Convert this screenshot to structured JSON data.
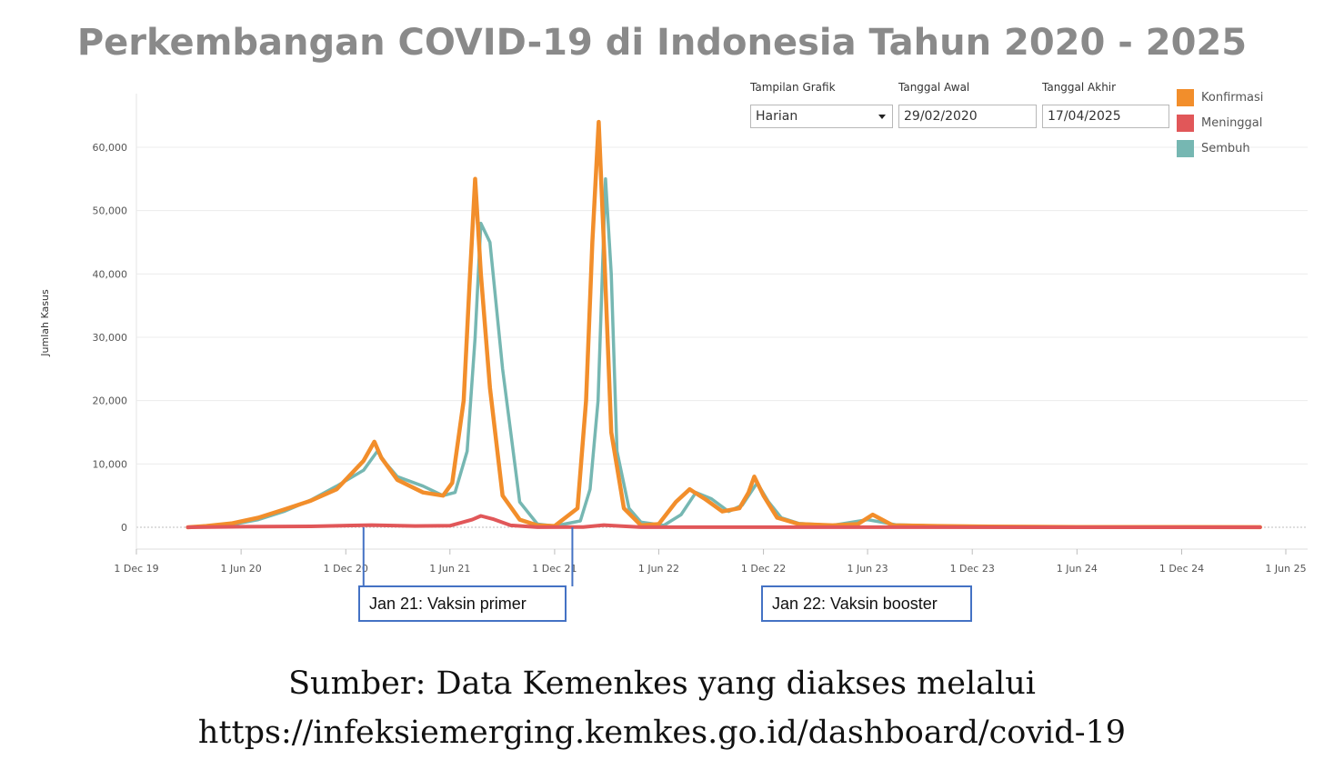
{
  "controls": {
    "view_label": "Tampilan Grafik",
    "view_value": "Harian",
    "start_label": "Tanggal Awal",
    "start_value": "29/02/2020",
    "end_label": "Tanggal Akhir",
    "end_value": "17/04/2025"
  },
  "annotations": [
    {
      "label": "Jan 21: Vaksin primer",
      "date": "2021-01-01"
    },
    {
      "label": "Jan 22: Vaksin booster",
      "date": "2022-01-01"
    }
  ],
  "source": {
    "line1": "Sumber: Data Kemenkes yang diakses melalui",
    "line2": "https://infeksiemerging.kemkes.go.id/dashboard/covid-19"
  },
  "chart_data": {
    "type": "line",
    "title": "Perkembangan COVID-19 di Indonesia Tahun 2020 - 2025",
    "ylabel": "Jumlah Kasus",
    "xlabel": "",
    "ylim": [
      0,
      65000
    ],
    "xlim": [
      "2019-12-01",
      "2025-06-01"
    ],
    "yticks": [
      0,
      10000,
      20000,
      30000,
      40000,
      50000,
      60000
    ],
    "ytick_labels": [
      "0",
      "10,000",
      "20,000",
      "30,000",
      "40,000",
      "50,000",
      "60,000"
    ],
    "xticks": [
      "2019-12-01",
      "2020-06-01",
      "2020-12-01",
      "2021-06-01",
      "2021-12-01",
      "2022-06-01",
      "2022-12-01",
      "2023-06-01",
      "2023-12-01",
      "2024-06-01",
      "2024-12-01",
      "2025-06-01"
    ],
    "xtick_labels": [
      "1 Dec 19",
      "1 Jun 20",
      "1 Dec 20",
      "1 Jun 21",
      "1 Dec 21",
      "1 Jun 22",
      "1 Dec 22",
      "1 Jun 23",
      "1 Dec 23",
      "1 Jun 24",
      "1 Dec 24",
      "1 Jun 25"
    ],
    "legend_position": "top-right",
    "grid": "horizontal",
    "series": [
      {
        "name": "Konfirmasi",
        "color": "#f28e2b",
        "x": [
          "2020-02-29",
          "2020-04-01",
          "2020-05-15",
          "2020-07-01",
          "2020-08-15",
          "2020-10-01",
          "2020-11-15",
          "2021-01-01",
          "2021-01-20",
          "2021-02-01",
          "2021-03-01",
          "2021-04-15",
          "2021-05-20",
          "2021-06-05",
          "2021-06-25",
          "2021-07-05",
          "2021-07-15",
          "2021-07-25",
          "2021-08-10",
          "2021-09-01",
          "2021-10-01",
          "2021-11-01",
          "2021-12-01",
          "2022-01-10",
          "2022-01-25",
          "2022-02-05",
          "2022-02-16",
          "2022-02-25",
          "2022-03-10",
          "2022-04-01",
          "2022-05-01",
          "2022-06-01",
          "2022-07-01",
          "2022-07-25",
          "2022-08-20",
          "2022-09-20",
          "2022-10-20",
          "2022-11-05",
          "2022-11-15",
          "2022-12-01",
          "2022-12-25",
          "2023-02-01",
          "2023-04-01",
          "2023-05-15",
          "2023-06-10",
          "2023-07-15",
          "2023-10-01",
          "2024-01-01",
          "2024-06-01",
          "2024-12-01",
          "2025-04-17"
        ],
        "values": [
          0,
          200,
          600,
          1500,
          2800,
          4200,
          6000,
          10500,
          13500,
          11000,
          7500,
          5500,
          5000,
          7000,
          20000,
          38000,
          55000,
          40000,
          22000,
          5000,
          1200,
          300,
          200,
          3000,
          20000,
          45000,
          64000,
          45000,
          15000,
          3000,
          300,
          500,
          4000,
          6000,
          4500,
          2500,
          3000,
          5500,
          8000,
          5000,
          1500,
          500,
          300,
          500,
          2000,
          300,
          200,
          100,
          50,
          30,
          20
        ]
      },
      {
        "name": "Meninggal",
        "color": "#e15759",
        "x": [
          "2020-02-29",
          "2020-06-01",
          "2020-10-01",
          "2021-01-15",
          "2021-04-01",
          "2021-06-01",
          "2021-07-10",
          "2021-07-25",
          "2021-08-15",
          "2021-09-15",
          "2021-11-01",
          "2022-01-20",
          "2022-02-25",
          "2022-03-25",
          "2022-05-01",
          "2022-12-01",
          "2025-04-17"
        ],
        "values": [
          0,
          80,
          150,
          350,
          200,
          250,
          1200,
          1800,
          1300,
          300,
          20,
          40,
          350,
          200,
          20,
          10,
          0
        ]
      },
      {
        "name": "Sembuh",
        "color": "#76b7b2",
        "x": [
          "2020-02-29",
          "2020-04-01",
          "2020-05-15",
          "2020-07-01",
          "2020-08-15",
          "2020-10-01",
          "2020-11-15",
          "2021-01-01",
          "2021-01-25",
          "2021-02-10",
          "2021-03-01",
          "2021-04-15",
          "2021-05-20",
          "2021-06-10",
          "2021-07-01",
          "2021-07-15",
          "2021-07-25",
          "2021-08-10",
          "2021-09-01",
          "2021-10-01",
          "2021-11-01",
          "2021-12-01",
          "2022-01-15",
          "2022-02-01",
          "2022-02-15",
          "2022-02-28",
          "2022-03-10",
          "2022-03-20",
          "2022-04-10",
          "2022-05-01",
          "2022-06-10",
          "2022-07-10",
          "2022-08-05",
          "2022-09-01",
          "2022-10-01",
          "2022-10-25",
          "2022-11-20",
          "2022-12-10",
          "2023-01-01",
          "2023-02-01",
          "2023-04-01",
          "2023-06-01",
          "2023-07-20",
          "2023-10-01",
          "2024-01-01",
          "2024-06-01",
          "2024-12-01",
          "2025-04-17"
        ],
        "values": [
          0,
          100,
          400,
          1200,
          2500,
          4300,
          6500,
          9000,
          12000,
          10000,
          8000,
          6500,
          5000,
          5500,
          12000,
          30000,
          48000,
          45000,
          25000,
          4000,
          500,
          200,
          1000,
          6000,
          20000,
          55000,
          40000,
          12000,
          3000,
          800,
          300,
          2000,
          5500,
          4500,
          2500,
          3500,
          7000,
          4000,
          1500,
          600,
          300,
          1200,
          400,
          200,
          100,
          50,
          30,
          20
        ]
      }
    ]
  }
}
